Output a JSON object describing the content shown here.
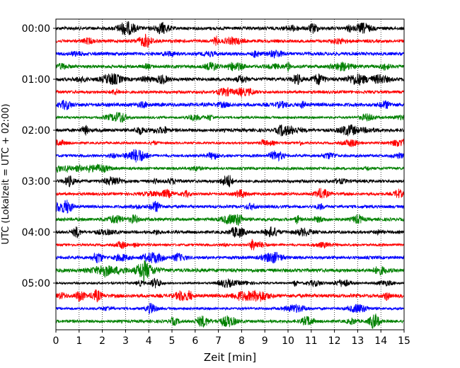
{
  "chart_data": {
    "type": "line",
    "title": "",
    "xlabel": "Zeit  [min]",
    "ylabel": "UTC (Lokalzeit = UTC + 02:00)",
    "xlim": [
      0,
      15
    ],
    "x_ticks": [
      "0",
      "1",
      "2",
      "3",
      "4",
      "5",
      "6",
      "7",
      "8",
      "9",
      "10",
      "11",
      "12",
      "13",
      "14",
      "15"
    ],
    "y_ticks": [
      "00:00",
      "01:00",
      "02:00",
      "03:00",
      "04:00",
      "05:00"
    ],
    "grid": "vertical-dotted",
    "trace_colors": [
      "#000000",
      "#ff0000",
      "#0000ff",
      "#008000"
    ],
    "trace_count": 24,
    "trace_interval_min": 15,
    "start": "00:00",
    "legend": "none"
  }
}
